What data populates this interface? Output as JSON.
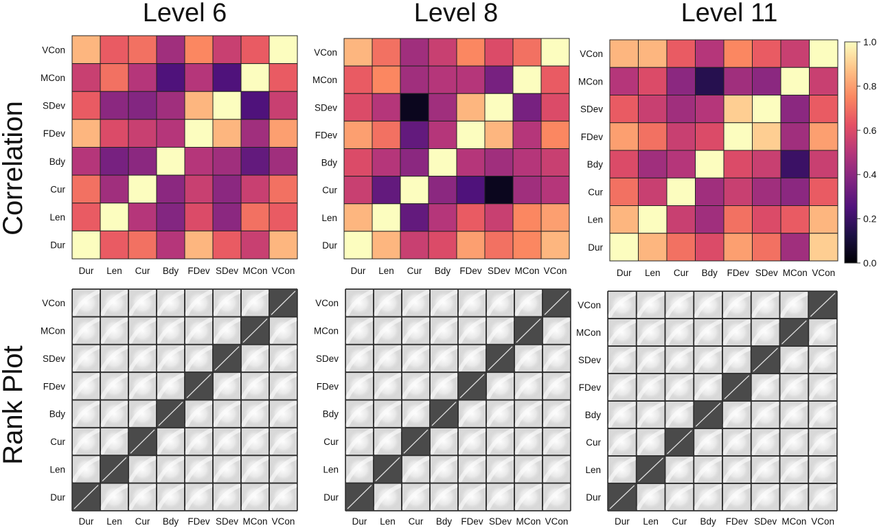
{
  "figure": {
    "row_titles": [
      "Correlation",
      "Rank Plot"
    ]
  },
  "chart_data": [
    {
      "type": "heatmap",
      "title": "Level 6",
      "row_labels": [
        "VCon",
        "MCon",
        "SDev",
        "FDev",
        "Bdy",
        "Cur",
        "Len",
        "Dur"
      ],
      "col_labels": [
        "Dur",
        "Len",
        "Cur",
        "Bdy",
        "FDev",
        "SDev",
        "MCon",
        "VCon"
      ],
      "values": [
        [
          0.85,
          0.65,
          0.7,
          0.45,
          0.75,
          0.55,
          0.65,
          1.0
        ],
        [
          0.55,
          0.7,
          0.5,
          0.25,
          0.5,
          0.25,
          1.0,
          0.65
        ],
        [
          0.65,
          0.4,
          0.38,
          0.45,
          0.85,
          1.0,
          0.25,
          0.55
        ],
        [
          0.85,
          0.6,
          0.55,
          0.5,
          1.0,
          0.85,
          0.45,
          0.8
        ],
        [
          0.5,
          0.35,
          0.4,
          1.0,
          0.5,
          0.45,
          0.3,
          0.45
        ],
        [
          0.7,
          0.45,
          1.0,
          0.4,
          0.55,
          0.4,
          0.55,
          0.7
        ],
        [
          0.65,
          1.0,
          0.5,
          0.38,
          0.6,
          0.4,
          0.7,
          0.65
        ],
        [
          1.0,
          0.65,
          0.7,
          0.5,
          0.85,
          0.65,
          0.55,
          0.85
        ]
      ],
      "colormap": "magma",
      "vlim": [
        0.0,
        1.0
      ]
    },
    {
      "type": "heatmap",
      "title": "Level 8",
      "row_labels": [
        "VCon",
        "MCon",
        "SDev",
        "FDev",
        "Bdy",
        "Cur",
        "Len",
        "Dur"
      ],
      "col_labels": [
        "Dur",
        "Len",
        "Cur",
        "Bdy",
        "FDev",
        "SDev",
        "MCon",
        "VCon"
      ],
      "values": [
        [
          0.85,
          0.7,
          0.45,
          0.55,
          0.75,
          0.6,
          0.7,
          1.0
        ],
        [
          0.65,
          0.75,
          0.45,
          0.5,
          0.5,
          0.35,
          1.0,
          0.65
        ],
        [
          0.6,
          0.5,
          0.05,
          0.45,
          0.85,
          1.0,
          0.35,
          0.6
        ],
        [
          0.8,
          0.7,
          0.3,
          0.5,
          1.0,
          0.85,
          0.5,
          0.75
        ],
        [
          0.6,
          0.5,
          0.4,
          1.0,
          0.5,
          0.45,
          0.5,
          0.55
        ],
        [
          0.55,
          0.3,
          1.0,
          0.4,
          0.25,
          0.05,
          0.45,
          0.5
        ],
        [
          0.85,
          1.0,
          0.3,
          0.5,
          0.65,
          0.55,
          0.75,
          0.8
        ],
        [
          1.0,
          0.85,
          0.55,
          0.6,
          0.8,
          0.7,
          0.75,
          0.85
        ]
      ],
      "colormap": "magma",
      "vlim": [
        0.0,
        1.0
      ]
    },
    {
      "type": "heatmap",
      "title": "Level 11",
      "row_labels": [
        "VCon",
        "MCon",
        "SDev",
        "FDev",
        "Bdy",
        "Cur",
        "Len",
        "Dur"
      ],
      "col_labels": [
        "Dur",
        "Len",
        "Cur",
        "Bdy",
        "FDev",
        "SDev",
        "MCon",
        "VCon"
      ],
      "values": [
        [
          0.85,
          0.85,
          0.65,
          0.5,
          0.75,
          0.65,
          0.55,
          1.0
        ],
        [
          0.5,
          0.6,
          0.4,
          0.15,
          0.45,
          0.4,
          1.0,
          0.55
        ],
        [
          0.65,
          0.55,
          0.45,
          0.5,
          0.9,
          1.0,
          0.4,
          0.65
        ],
        [
          0.8,
          0.7,
          0.55,
          0.6,
          1.0,
          0.9,
          0.45,
          0.8
        ],
        [
          0.6,
          0.45,
          0.5,
          1.0,
          0.6,
          0.55,
          0.2,
          0.55
        ],
        [
          0.7,
          0.55,
          1.0,
          0.45,
          0.55,
          0.45,
          0.4,
          0.65
        ],
        [
          0.85,
          1.0,
          0.55,
          0.45,
          0.7,
          0.6,
          0.65,
          0.85
        ],
        [
          1.0,
          0.85,
          0.7,
          0.6,
          0.8,
          0.7,
          0.45,
          0.9
        ]
      ],
      "colormap": "magma",
      "vlim": [
        0.0,
        1.0
      ]
    },
    {
      "type": "colorbar",
      "colormap": "magma",
      "range": [
        0.0,
        1.0
      ],
      "ticks": [
        "0.0",
        "0.2",
        "0.4",
        "0.6",
        "0.8",
        "1.0"
      ]
    },
    {
      "type": "scatter_matrix",
      "title": "Level 6",
      "row_labels": [
        "VCon",
        "MCon",
        "SDev",
        "FDev",
        "Bdy",
        "Cur",
        "Len",
        "Dur"
      ],
      "col_labels": [
        "Dur",
        "Len",
        "Cur",
        "Bdy",
        "FDev",
        "SDev",
        "MCon",
        "VCon"
      ],
      "diagonal": "identity"
    },
    {
      "type": "scatter_matrix",
      "title": "Level 8",
      "row_labels": [
        "VCon",
        "MCon",
        "SDev",
        "FDev",
        "Bdy",
        "Cur",
        "Len",
        "Dur"
      ],
      "col_labels": [
        "Dur",
        "Len",
        "Cur",
        "Bdy",
        "FDev",
        "SDev",
        "MCon",
        "VCon"
      ],
      "diagonal": "identity"
    },
    {
      "type": "scatter_matrix",
      "title": "Level 11",
      "row_labels": [
        "VCon",
        "MCon",
        "SDev",
        "FDev",
        "Bdy",
        "Cur",
        "Len",
        "Dur"
      ],
      "col_labels": [
        "Dur",
        "Len",
        "Cur",
        "Bdy",
        "FDev",
        "SDev",
        "MCon",
        "VCon"
      ],
      "diagonal": "identity"
    }
  ]
}
